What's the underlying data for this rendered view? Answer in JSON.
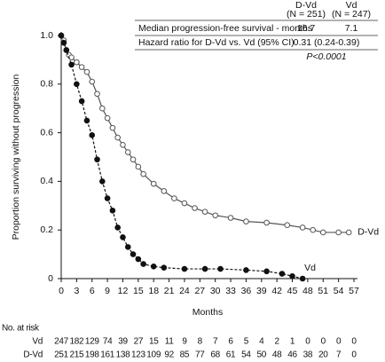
{
  "chart_data": {
    "type": "line",
    "x_label": "Months",
    "y_label": "Proportion surviving without progression",
    "xlim": [
      0,
      57
    ],
    "xticks": [
      0,
      3,
      6,
      9,
      12,
      15,
      18,
      21,
      24,
      27,
      30,
      33,
      36,
      39,
      42,
      45,
      48,
      51,
      54,
      57
    ],
    "ylim": [
      0,
      1
    ],
    "yticks": [
      0,
      0.2,
      0.4,
      0.6,
      0.8,
      {
        "value": 1,
        "label": "1.0"
      }
    ],
    "series": [
      {
        "name": "D-Vd",
        "color": "#555555",
        "dash": false,
        "x": [
          0,
          0.5,
          1,
          1.5,
          2,
          3,
          4,
          5,
          6,
          7,
          8,
          9,
          10,
          11,
          12,
          13,
          14,
          15,
          16,
          18,
          20,
          22,
          24,
          26,
          28,
          30,
          33,
          36,
          40,
          44,
          47,
          49,
          51,
          54,
          56
        ],
        "values": [
          1.0,
          0.98,
          0.94,
          0.92,
          0.91,
          0.89,
          0.87,
          0.85,
          0.81,
          0.76,
          0.7,
          0.66,
          0.62,
          0.58,
          0.55,
          0.52,
          0.49,
          0.46,
          0.43,
          0.39,
          0.36,
          0.33,
          0.31,
          0.29,
          0.275,
          0.26,
          0.25,
          0.235,
          0.23,
          0.22,
          0.21,
          0.2,
          0.19,
          0.19,
          0.19
        ]
      },
      {
        "name": "Vd",
        "color": "#111111",
        "dash": true,
        "x": [
          0,
          0.5,
          1,
          2,
          3,
          4,
          5,
          6,
          7,
          8,
          9,
          10,
          11,
          12,
          13,
          14,
          15,
          16,
          18,
          20,
          24,
          28,
          31,
          36,
          40,
          43,
          45,
          47
        ],
        "values": [
          1.0,
          0.97,
          0.94,
          0.88,
          0.8,
          0.73,
          0.65,
          0.59,
          0.49,
          0.4,
          0.33,
          0.28,
          0.21,
          0.17,
          0.13,
          0.1,
          0.08,
          0.06,
          0.05,
          0.045,
          0.04,
          0.04,
          0.04,
          0.035,
          0.03,
          0.02,
          0.01,
          0.0
        ]
      }
    ],
    "inset_table": {
      "columns": [
        "D-Vd",
        "(N = 251)",
        "Vd",
        "(N = 247)"
      ],
      "rows": [
        [
          "Median progression-free survival - months",
          "16.7",
          "7.1"
        ],
        [
          "Hazard ratio for D-Vd vs. Vd (95% CI)",
          "0.31 (0.24-0.39)"
        ]
      ],
      "p_value": "P<0.0001"
    },
    "at_risk": {
      "title": "No. at risk",
      "rows": [
        {
          "label": "Vd",
          "counts": [
            "247",
            "182",
            "129",
            "74",
            "39",
            "27",
            "15",
            "11",
            "9",
            "8",
            "7",
            "6",
            "5",
            "4",
            "2",
            "1",
            "0",
            "0",
            "0",
            "0"
          ]
        },
        {
          "label": "D-Vd",
          "counts": [
            "251",
            "215",
            "198",
            "161",
            "138",
            "123",
            "109",
            "92",
            "85",
            "77",
            "68",
            "61",
            "54",
            "50",
            "48",
            "46",
            "38",
            "20",
            "7",
            "0"
          ]
        }
      ]
    }
  }
}
